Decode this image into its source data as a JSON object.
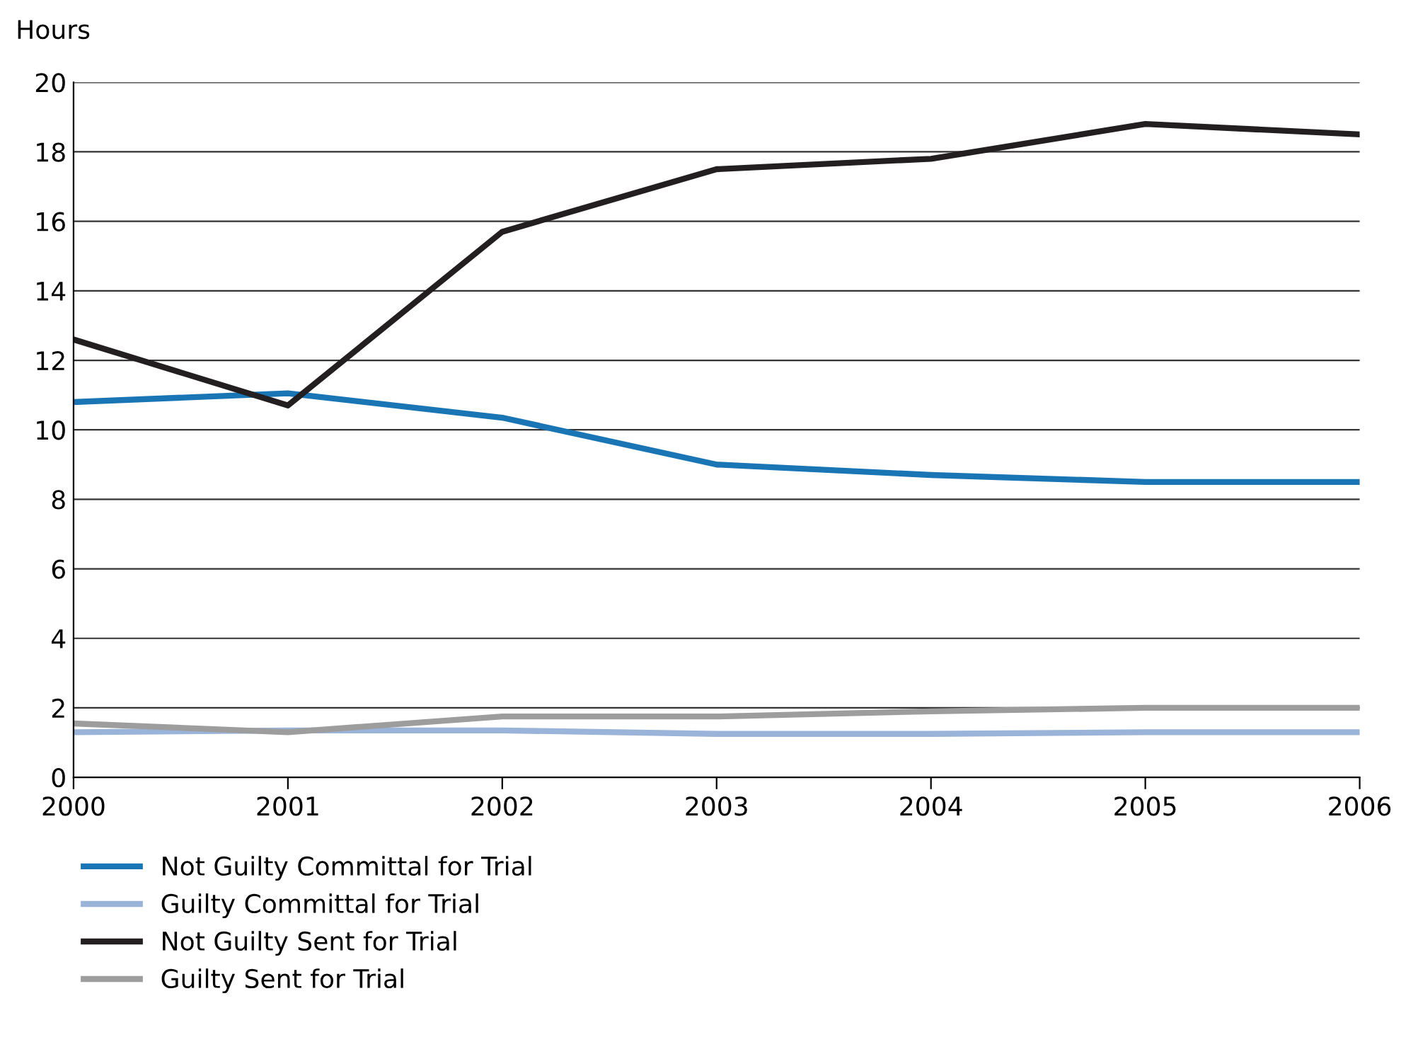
{
  "chart_data": {
    "type": "line",
    "ylabel": "Hours",
    "x": [
      2000,
      2001,
      2002,
      2003,
      2004,
      2005,
      2006
    ],
    "xlim": [
      2000,
      2006
    ],
    "xticks": [
      2000,
      2001,
      2002,
      2003,
      2004,
      2005,
      2006
    ],
    "ylim": [
      0,
      20
    ],
    "yticks": [
      0,
      2,
      4,
      6,
      8,
      10,
      12,
      14,
      16,
      18,
      20
    ],
    "grid": "y",
    "legend": "bottom",
    "marker": "none",
    "line_style": "solid",
    "series": [
      {
        "name": "Not Guilty Committal for Trial",
        "color": "#1a75b5",
        "values": [
          10.8,
          11.05,
          10.35,
          9.0,
          8.7,
          8.5,
          8.5
        ]
      },
      {
        "name": "Guilty Committal for Trial",
        "color": "#9ab3d9",
        "values": [
          1.3,
          1.35,
          1.35,
          1.25,
          1.25,
          1.3,
          1.3
        ]
      },
      {
        "name": "Not Guilty Sent for Trial",
        "color": "#231f20",
        "values": [
          12.6,
          10.7,
          15.7,
          17.5,
          17.8,
          18.8,
          18.5
        ]
      },
      {
        "name": "Guilty Sent for Trial",
        "color": "#9d9d9d",
        "values": [
          1.55,
          1.3,
          1.75,
          1.75,
          1.9,
          2.0,
          2.0
        ]
      }
    ]
  }
}
